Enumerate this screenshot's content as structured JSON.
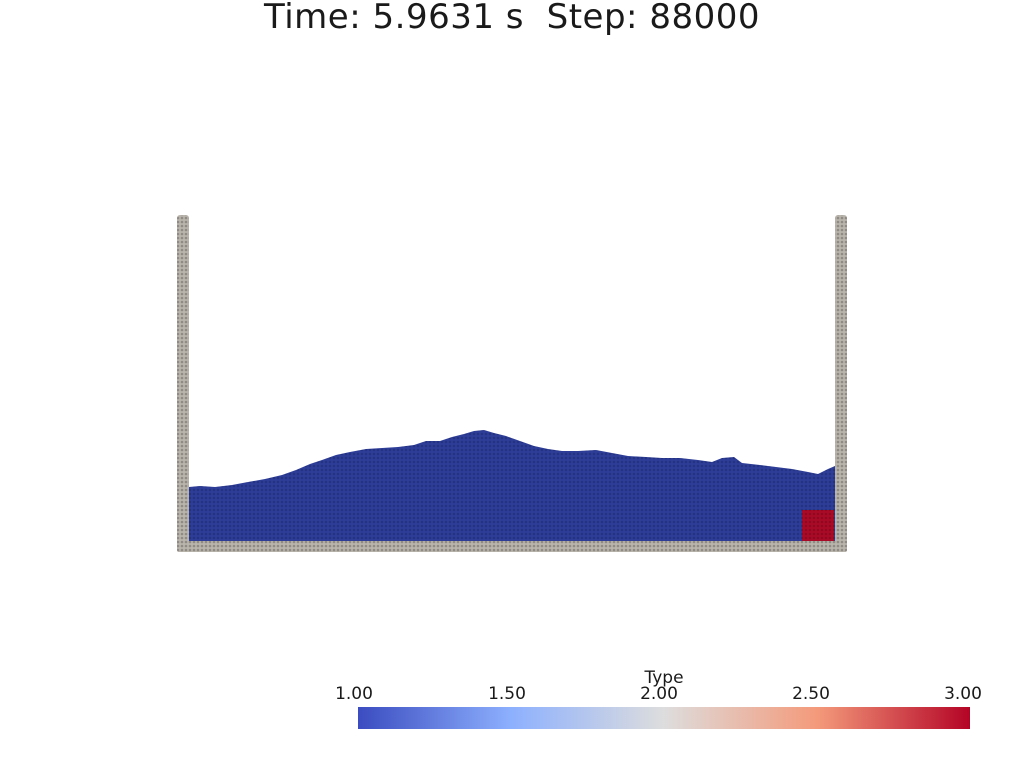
{
  "title": {
    "time_label": "Time:",
    "time_value": "5.9631",
    "time_unit": "s",
    "step_label": "Step:",
    "step_value": "88000"
  },
  "scene": {
    "colors": {
      "wall": "#b9b5ad",
      "wall_shade": "#8f8b84",
      "fluid_type1": "#2d3d98",
      "fluid_shade": "#24327f",
      "block_type3": "#a90a26"
    }
  },
  "colorbar": {
    "title": "Type",
    "ticks": [
      "1.00",
      "1.50",
      "2.00",
      "2.50",
      "3.00"
    ],
    "range": [
      1.0,
      3.0
    ],
    "colormap": "Cool to Warm",
    "colors": {
      "low": "#3b4cc0",
      "quarter": "#8db0fe",
      "mid": "#dddddd",
      "three_quarter": "#f49a7b",
      "high": "#b40426"
    }
  }
}
